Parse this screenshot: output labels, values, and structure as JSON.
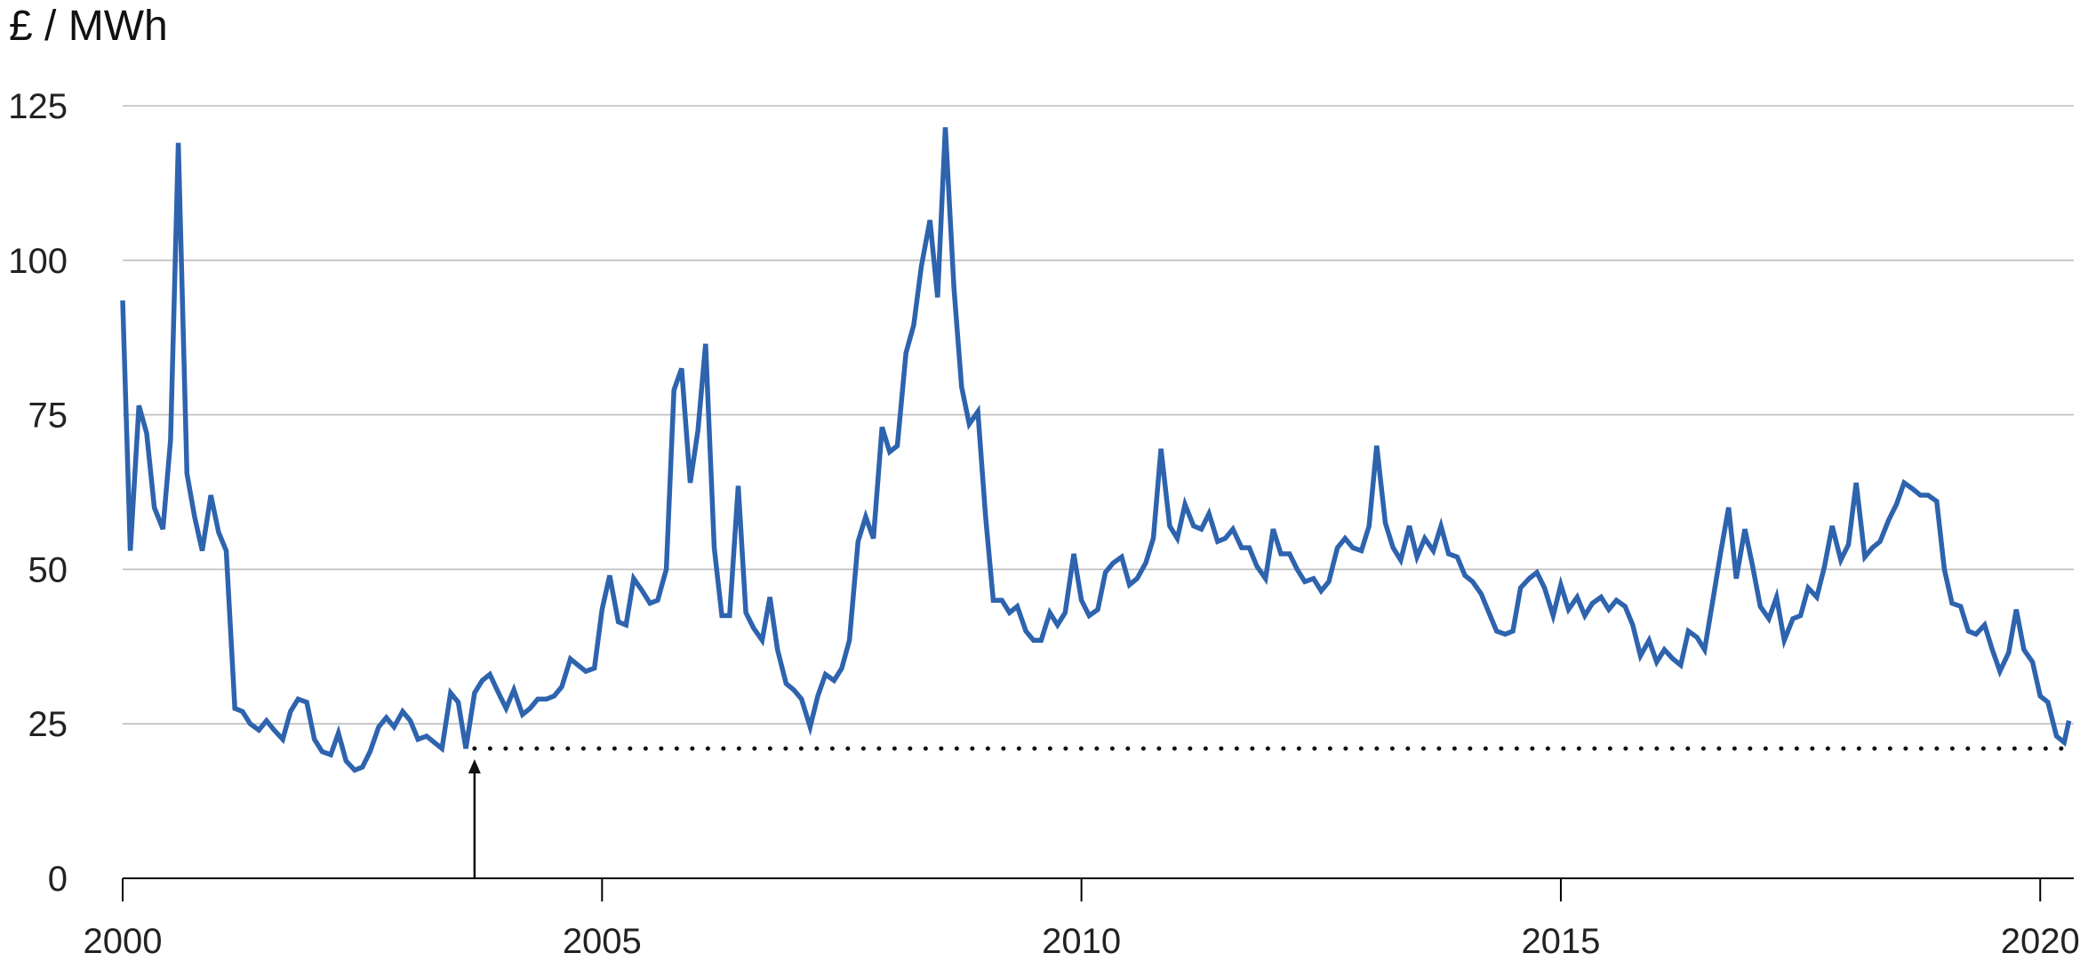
{
  "chart_data": {
    "type": "line",
    "title": "",
    "ylabel": "£ / MWh",
    "xlabel": "",
    "xlim": [
      2000,
      2020.35
    ],
    "ylim": [
      0,
      125
    ],
    "grid": true,
    "yticks": [
      0,
      25,
      50,
      75,
      100,
      125
    ],
    "xticks": [
      2000,
      2005,
      2010,
      2015,
      2020
    ],
    "series": [
      {
        "color": "#2e63ae",
        "x": [
          2000.0,
          2000.08,
          2000.17,
          2000.25,
          2000.33,
          2000.42,
          2000.5,
          2000.58,
          2000.67,
          2000.75,
          2000.83,
          2000.92,
          2001.0,
          2001.08,
          2001.17,
          2001.25,
          2001.33,
          2001.42,
          2001.5,
          2001.58,
          2001.67,
          2001.75,
          2001.83,
          2001.92,
          2002.0,
          2002.08,
          2002.17,
          2002.25,
          2002.33,
          2002.42,
          2002.5,
          2002.58,
          2002.67,
          2002.75,
          2002.83,
          2002.92,
          2003.0,
          2003.08,
          2003.17,
          2003.25,
          2003.33,
          2003.42,
          2003.5,
          2003.58,
          2003.67,
          2003.75,
          2003.83,
          2003.92,
          2004.0,
          2004.08,
          2004.17,
          2004.25,
          2004.33,
          2004.42,
          2004.5,
          2004.58,
          2004.67,
          2004.75,
          2004.83,
          2004.92,
          2005.0,
          2005.08,
          2005.17,
          2005.25,
          2005.33,
          2005.42,
          2005.5,
          2005.58,
          2005.67,
          2005.75,
          2005.83,
          2005.92,
          2006.0,
          2006.08,
          2006.17,
          2006.25,
          2006.33,
          2006.42,
          2006.5,
          2006.58,
          2006.67,
          2006.75,
          2006.83,
          2006.92,
          2007.0,
          2007.08,
          2007.17,
          2007.25,
          2007.33,
          2007.42,
          2007.5,
          2007.58,
          2007.67,
          2007.75,
          2007.83,
          2007.92,
          2008.0,
          2008.08,
          2008.17,
          2008.25,
          2008.33,
          2008.42,
          2008.5,
          2008.58,
          2008.67,
          2008.75,
          2008.83,
          2008.92,
          2009.0,
          2009.08,
          2009.17,
          2009.25,
          2009.33,
          2009.42,
          2009.5,
          2009.58,
          2009.67,
          2009.75,
          2009.83,
          2009.92,
          2010.0,
          2010.08,
          2010.17,
          2010.25,
          2010.33,
          2010.42,
          2010.5,
          2010.58,
          2010.67,
          2010.75,
          2010.83,
          2010.92,
          2011.0,
          2011.08,
          2011.17,
          2011.25,
          2011.33,
          2011.42,
          2011.5,
          2011.58,
          2011.67,
          2011.75,
          2011.83,
          2011.92,
          2012.0,
          2012.08,
          2012.17,
          2012.25,
          2012.33,
          2012.42,
          2012.5,
          2012.58,
          2012.67,
          2012.75,
          2012.83,
          2012.92,
          2013.0,
          2013.08,
          2013.17,
          2013.25,
          2013.33,
          2013.42,
          2013.5,
          2013.58,
          2013.67,
          2013.75,
          2013.83,
          2013.92,
          2014.0,
          2014.08,
          2014.17,
          2014.25,
          2014.33,
          2014.42,
          2014.5,
          2014.58,
          2014.67,
          2014.75,
          2014.83,
          2014.92,
          2015.0,
          2015.08,
          2015.17,
          2015.25,
          2015.33,
          2015.42,
          2015.5,
          2015.58,
          2015.67,
          2015.75,
          2015.83,
          2015.92,
          2016.0,
          2016.08,
          2016.17,
          2016.25,
          2016.33,
          2016.42,
          2016.5,
          2016.58,
          2016.67,
          2016.75,
          2016.83,
          2016.92,
          2017.0,
          2017.08,
          2017.17,
          2017.25,
          2017.33,
          2017.42,
          2017.5,
          2017.58,
          2017.67,
          2017.75,
          2017.83,
          2017.92,
          2018.0,
          2018.08,
          2018.17,
          2018.25,
          2018.33,
          2018.42,
          2018.5,
          2018.58,
          2018.67,
          2018.75,
          2018.83,
          2018.92,
          2019.0,
          2019.08,
          2019.17,
          2019.25,
          2019.33,
          2019.42,
          2019.5,
          2019.58,
          2019.67,
          2019.75,
          2019.83,
          2019.92,
          2020.0,
          2020.08,
          2020.17,
          2020.25,
          2020.3
        ],
        "values": [
          93.5,
          53.0,
          76.5,
          72.0,
          60.0,
          56.5,
          71.0,
          119.0,
          65.5,
          58.5,
          53.0,
          62.0,
          56.0,
          53.0,
          27.5,
          27.0,
          25.0,
          24.0,
          25.5,
          24.0,
          22.5,
          27.0,
          29.0,
          28.5,
          22.5,
          20.5,
          20.0,
          23.5,
          19.0,
          17.5,
          18.0,
          20.5,
          24.5,
          26.0,
          24.5,
          27.0,
          25.5,
          22.5,
          23.0,
          22.0,
          21.0,
          30.0,
          28.5,
          21.0,
          30.0,
          32.0,
          33.0,
          30.0,
          27.5,
          30.5,
          26.5,
          27.5,
          29.0,
          29.0,
          29.5,
          31.0,
          35.5,
          34.5,
          33.5,
          34.0,
          43.5,
          49.0,
          41.5,
          41.0,
          48.5,
          46.5,
          44.5,
          45.0,
          50.0,
          79.0,
          82.5,
          64.0,
          72.5,
          86.5,
          53.5,
          42.5,
          42.5,
          63.5,
          43.0,
          40.5,
          38.5,
          45.5,
          37.0,
          31.5,
          30.5,
          29.0,
          24.5,
          29.5,
          33.0,
          32.0,
          34.0,
          38.5,
          54.5,
          58.5,
          55.0,
          73.0,
          69.0,
          70.0,
          85.0,
          89.5,
          99.0,
          106.5,
          94.0,
          121.5,
          95.5,
          79.5,
          73.5,
          75.5,
          58.5,
          45.0,
          45.0,
          43.0,
          44.0,
          40.0,
          38.5,
          38.5,
          43.0,
          41.0,
          43.0,
          52.5,
          45.0,
          42.5,
          43.5,
          49.5,
          51.0,
          52.0,
          47.5,
          48.5,
          51.0,
          55.0,
          69.5,
          57.0,
          55.0,
          60.5,
          57.0,
          56.5,
          59.0,
          54.5,
          55.0,
          56.5,
          53.5,
          53.5,
          50.5,
          48.5,
          56.5,
          52.5,
          52.5,
          50.0,
          48.0,
          48.5,
          46.5,
          48.0,
          53.5,
          55.0,
          53.5,
          53.0,
          57.0,
          70.0,
          57.5,
          53.5,
          51.5,
          57.0,
          52.0,
          55.0,
          53.0,
          57.0,
          52.5,
          52.0,
          49.0,
          48.0,
          46.0,
          43.0,
          40.0,
          39.5,
          40.0,
          47.0,
          48.5,
          49.5,
          47.0,
          42.5,
          47.5,
          43.5,
          45.5,
          42.5,
          44.5,
          45.5,
          43.5,
          45.0,
          44.0,
          41.0,
          36.0,
          38.5,
          35.0,
          37.0,
          35.5,
          34.5,
          40.0,
          39.0,
          37.0,
          44.5,
          53.0,
          60.0,
          48.5,
          56.5,
          50.5,
          44.0,
          42.0,
          45.5,
          38.5,
          42.0,
          42.5,
          47.0,
          45.5,
          50.5,
          57.0,
          51.5,
          54.0,
          64.0,
          52.0,
          53.5,
          54.5,
          58.0,
          60.5,
          64.0,
          63.0,
          62.0,
          62.0,
          61.0,
          50.0,
          44.5,
          44.0,
          40.0,
          39.5,
          41.0,
          37.0,
          33.5,
          36.5,
          43.5,
          37.0,
          35.0,
          29.5,
          28.5,
          23.0,
          22.0,
          25.5
        ]
      }
    ],
    "reference_line": {
      "start_x": 2003.67,
      "end_x": 2020.3,
      "value": 21,
      "style": "dotted"
    }
  }
}
